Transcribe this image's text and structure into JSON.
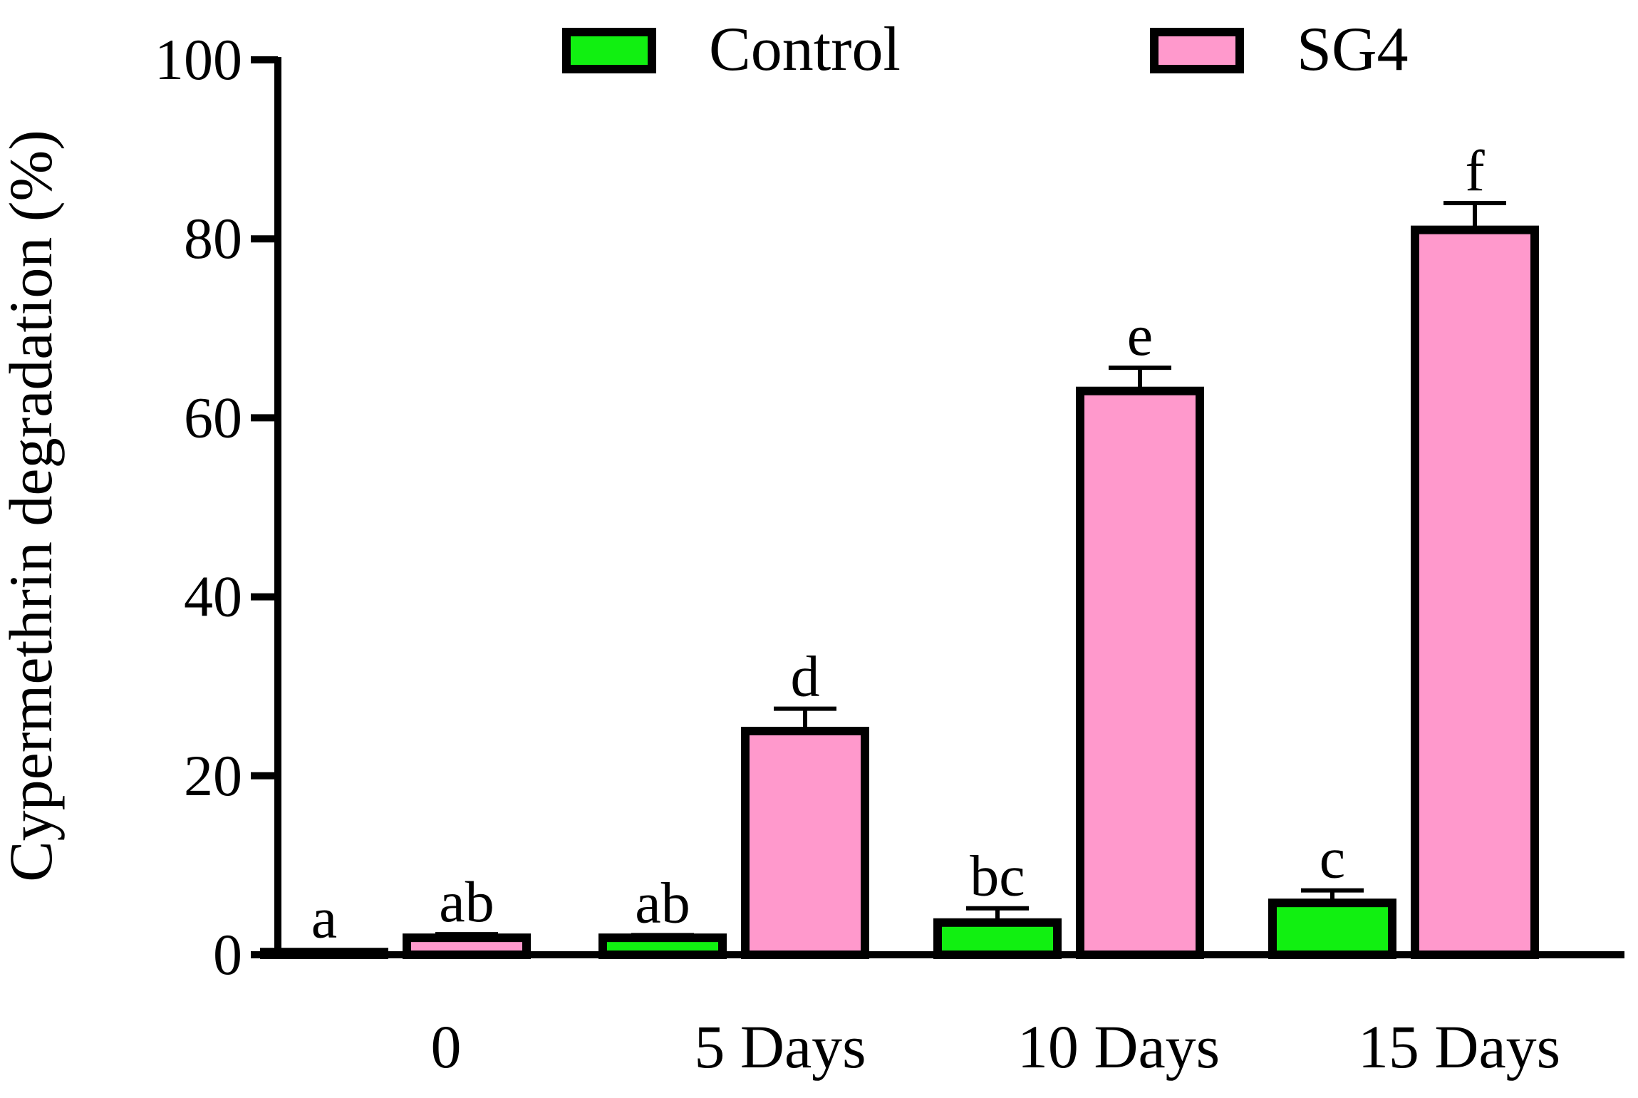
{
  "chart_data": {
    "type": "bar",
    "title": "",
    "xlabel": "",
    "ylabel": "Cypermethrin degradation (%)",
    "ylim": [
      0,
      100
    ],
    "yticks": [
      0,
      20,
      40,
      60,
      80,
      100
    ],
    "legend_position": "top",
    "categories": [
      "0",
      "5 Days",
      "10 Days",
      "15 Days"
    ],
    "series": [
      {
        "name": "Control",
        "color": "#11f011",
        "values": [
          0.3,
          1.9,
          3.6,
          5.8
        ],
        "errors": [
          0.2,
          0.3,
          1.6,
          1.4
        ],
        "letters": [
          "a",
          "ab",
          "bc",
          "c"
        ]
      },
      {
        "name": "SG4",
        "color": "#ff99cc",
        "values": [
          1.9,
          25.0,
          63.0,
          81.0
        ],
        "errors": [
          0.4,
          2.5,
          2.6,
          3.0
        ],
        "letters": [
          "ab",
          "d",
          "e",
          "f"
        ]
      }
    ]
  }
}
